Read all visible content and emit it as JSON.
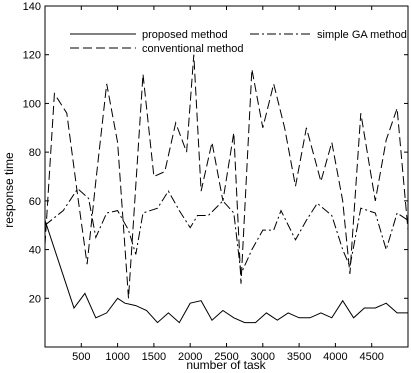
{
  "chart_data": {
    "type": "line",
    "xlabel": "number of task",
    "ylabel": "response time",
    "xlim": [
      0,
      5000
    ],
    "ylim": [
      0,
      140
    ],
    "x_ticks": [
      500,
      1000,
      1500,
      2000,
      2500,
      3000,
      3500,
      4000,
      4500
    ],
    "y_ticks": [
      20,
      40,
      60,
      80,
      100,
      120,
      140
    ],
    "grid": false,
    "legend_position": "top",
    "series": [
      {
        "name": "proposed method",
        "style": "solid",
        "color": "#000000",
        "x": [
          0,
          200,
          400,
          550,
          700,
          850,
          1000,
          1100,
          1250,
          1400,
          1550,
          1700,
          1850,
          2000,
          2150,
          2300,
          2450,
          2600,
          2750,
          2900,
          3050,
          3200,
          3350,
          3500,
          3650,
          3800,
          3950,
          4100,
          4250,
          4400,
          4550,
          4700,
          4850,
          5000
        ],
        "values": [
          52,
          34,
          16,
          22,
          12,
          14,
          20,
          18,
          17,
          15,
          10,
          14,
          10,
          18,
          19,
          11,
          15,
          12,
          10,
          10,
          14,
          11,
          14,
          12,
          12,
          14,
          12,
          19,
          12,
          16,
          16,
          18,
          14,
          14
        ]
      },
      {
        "name": "simple GA method",
        "style": "dashdot",
        "color": "#000000",
        "x": [
          0,
          250,
          450,
          600,
          700,
          850,
          1000,
          1150,
          1250,
          1350,
          1550,
          1700,
          1850,
          2000,
          2100,
          2250,
          2450,
          2600,
          2700,
          2850,
          3000,
          3150,
          3250,
          3450,
          3600,
          3750,
          3950,
          4100,
          4200,
          4350,
          4550,
          4700,
          4850,
          5000
        ],
        "values": [
          50,
          56,
          65,
          61,
          45,
          55,
          56,
          48,
          38,
          55,
          57,
          64,
          56,
          49,
          54,
          54,
          60,
          55,
          30,
          40,
          48,
          48,
          56,
          44,
          52,
          59,
          54,
          40,
          33,
          57,
          55,
          40,
          55,
          52
        ]
      },
      {
        "name": "conventional method",
        "style": "dashed",
        "color": "#000000",
        "x": [
          0,
          130,
          300,
          450,
          580,
          700,
          850,
          1000,
          1150,
          1350,
          1500,
          1650,
          1800,
          1950,
          2050,
          2150,
          2300,
          2450,
          2600,
          2700,
          2850,
          3000,
          3150,
          3300,
          3450,
          3600,
          3800,
          3950,
          4100,
          4200,
          4350,
          4550,
          4700,
          4850,
          5000
        ],
        "values": [
          42,
          104,
          96,
          62,
          34,
          68,
          108,
          84,
          20,
          112,
          70,
          72,
          92,
          80,
          120,
          64,
          84,
          60,
          88,
          26,
          114,
          90,
          108,
          90,
          66,
          90,
          68,
          84,
          60,
          30,
          96,
          60,
          85,
          98,
          48
        ]
      }
    ]
  }
}
